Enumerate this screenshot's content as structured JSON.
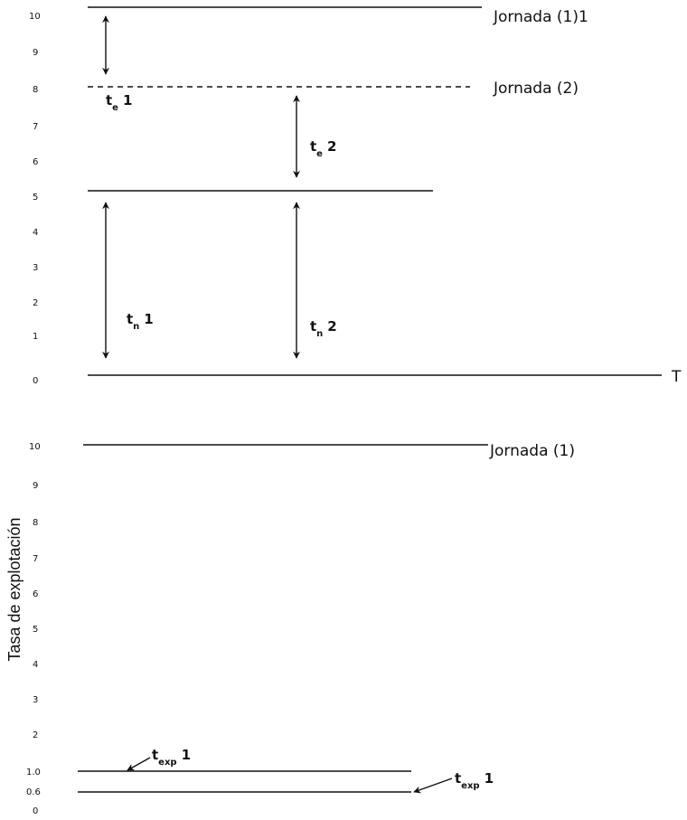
{
  "diagram": {
    "y_axis_label": "Tasa de explotación",
    "top_panel": {
      "ticks": [
        "10",
        "9",
        "8",
        "7",
        "6",
        "5",
        "4",
        "3",
        "2",
        "1",
        "0"
      ],
      "labels": {
        "jornada_1_1": "Jornada (1)1",
        "jornada_2": "Jornada (2)",
        "t_axis": "T"
      },
      "annotations": {
        "te1": {
          "base": "t",
          "sub": "e",
          "num": "1"
        },
        "te2": {
          "base": "t",
          "sub": "e",
          "num": "2"
        },
        "tn1": {
          "base": "t",
          "sub": "n",
          "num": "1"
        },
        "tn2": {
          "base": "t",
          "sub": "n",
          "num": "2"
        }
      }
    },
    "bottom_panel": {
      "ticks": [
        "10",
        "9",
        "8",
        "7",
        "6",
        "5",
        "4",
        "3",
        "2",
        "1.0",
        "0.6",
        "0"
      ],
      "labels": {
        "jornada_1": "Jornada (1)"
      },
      "annotations": {
        "texp_upper": {
          "base": "t",
          "sub": "exp",
          "num": "1"
        },
        "texp_lower": {
          "base": "t",
          "sub": "exp",
          "num": "1"
        }
      }
    }
  }
}
